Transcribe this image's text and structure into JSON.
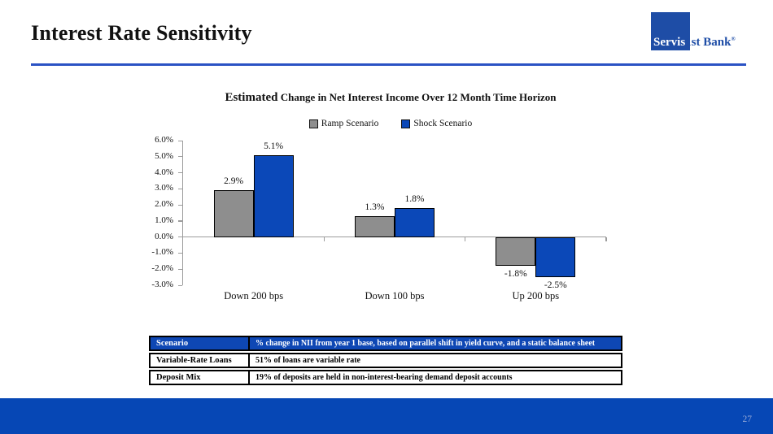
{
  "slide": {
    "title": "Interest Rate Sensitivity",
    "page_number": "27"
  },
  "logo": {
    "part1": "Servis",
    "part2": "1st Bank",
    "reg": "®"
  },
  "colors": {
    "accent_bar_blue": "#0b48b8",
    "bar_gray": "#8e8e8e",
    "footer_blue": "#0647b5",
    "table_header_blue": "#0e47b4",
    "header_rule_blue": "#2a52c4",
    "logo_blue": "#1e4da6",
    "axis_gray": "#9c9c9c"
  },
  "chart_data": {
    "type": "bar",
    "title_emphasis": "Estimated",
    "title_rest": " Change in Net Interest Income Over 12 Month Time Horizon",
    "categories": [
      "Down 200 bps",
      "Down 100 bps",
      "Up 200 bps"
    ],
    "series": [
      {
        "name": "Ramp Scenario",
        "color": "#8e8e8e",
        "values": [
          2.9,
          1.3,
          -1.8
        ]
      },
      {
        "name": "Shock Scenario",
        "color": "#0b48b8",
        "values": [
          5.1,
          1.8,
          -2.5
        ]
      }
    ],
    "value_suffix": "%",
    "ylim": [
      -3.0,
      6.0
    ],
    "ytick_step": 1.0,
    "ytick_labels": [
      "6.0%",
      "5.0%",
      "4.0%",
      "3.0%",
      "2.0%",
      "1.0%",
      "0.0%",
      "-1.0%",
      "-2.0%",
      "-3.0%"
    ],
    "legend_position": "top",
    "grid": false
  },
  "table": {
    "rows": [
      {
        "label": "Scenario",
        "value": "% change in NII from year 1 base, based on parallel shift in yield curve, and a static balance sheet",
        "header": true
      },
      {
        "label": "Variable-Rate Loans",
        "value": "51% of loans are variable rate",
        "header": false
      },
      {
        "label": "Deposit Mix",
        "value": "19% of deposits are held in non-interest-bearing demand deposit accounts",
        "header": false
      }
    ]
  }
}
